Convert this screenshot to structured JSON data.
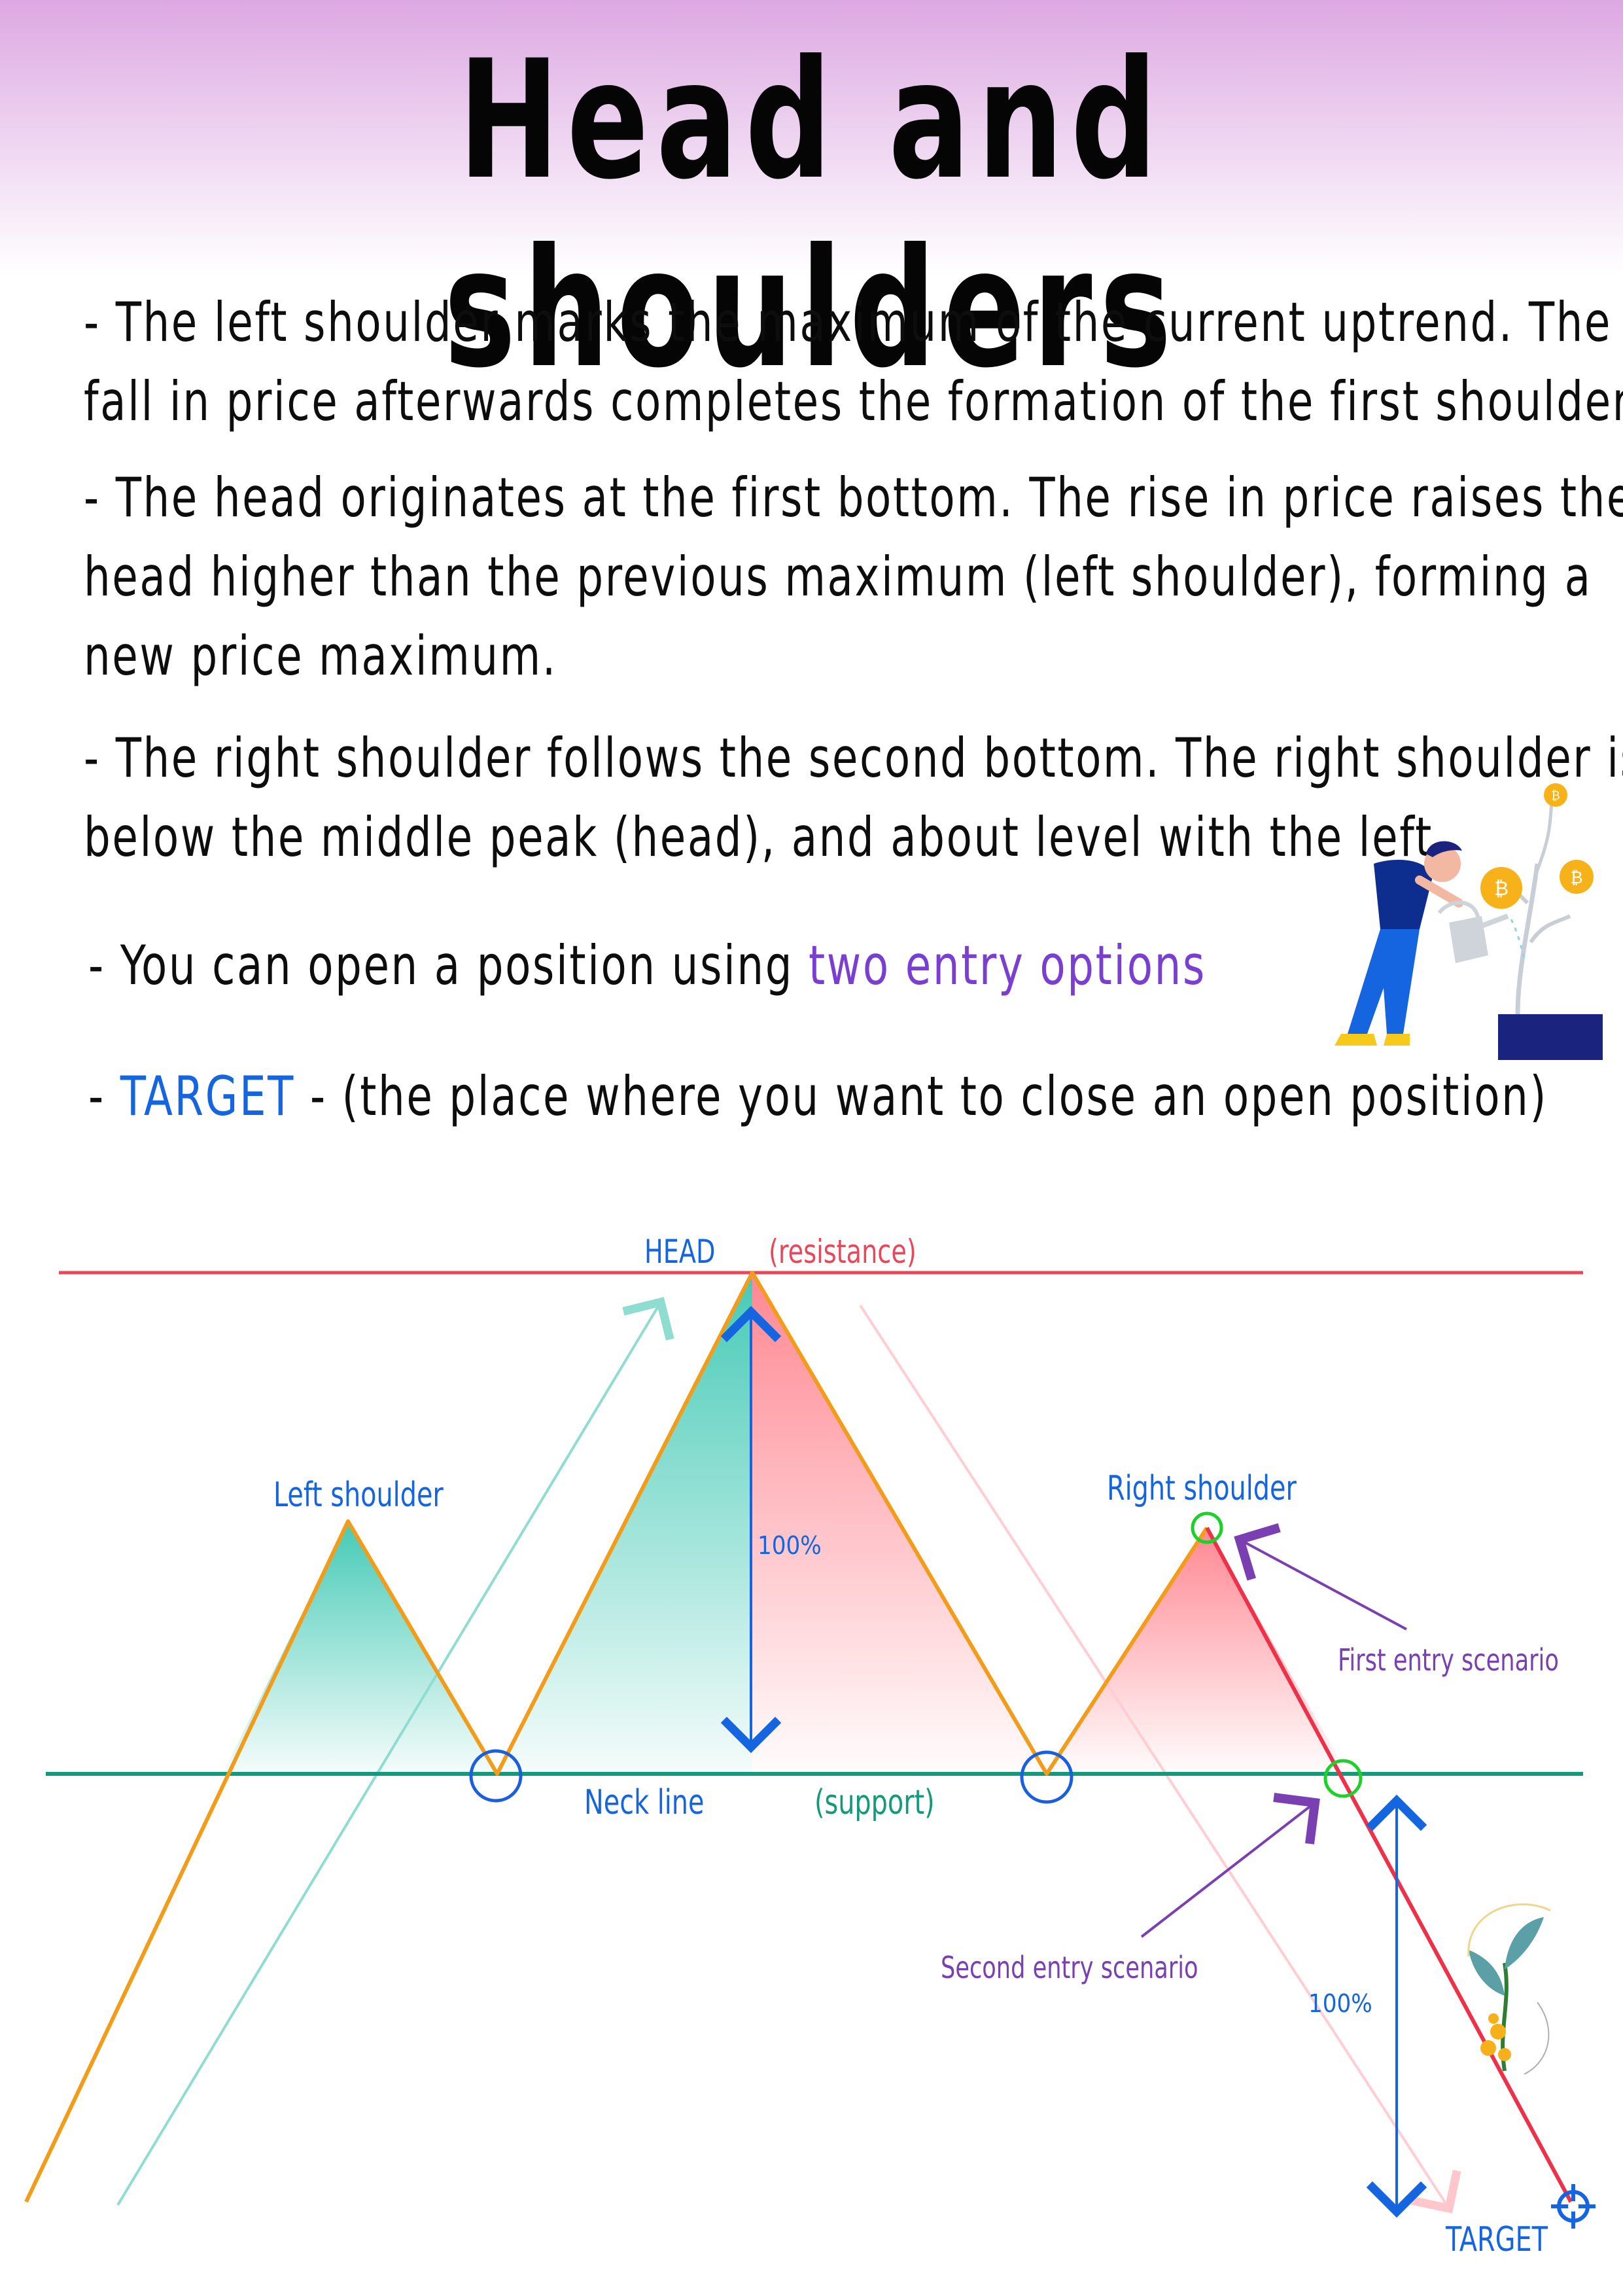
{
  "title": "Head and shoulders",
  "paragraphs": {
    "p1": [
      "- The left shoulder marks the maximum of the current uptrend. The",
      "fall in price afterwards completes the formation of the first shoulder"
    ],
    "p2": [
      "- The head originates at the first bottom. The rise in price raises the",
      "head higher than the previous maximum (left shoulder), forming a",
      "new price maximum."
    ],
    "p3": [
      "- The right shoulder follows the second bottom. The right shoulder is",
      "below the middle peak (head), and about level with the left"
    ],
    "p4": {
      "prefix": "- You can open a position using ",
      "highlight": "two entry options"
    },
    "p5": {
      "prefix": "- ",
      "highlight": "TARGET",
      "suffix": " - (the place where you want to close an open position)"
    }
  },
  "diagram": {
    "labels": {
      "head": "HEAD",
      "resistance": "(resistance)",
      "left_shoulder": "Left shoulder",
      "right_shoulder": "Right shoulder",
      "neck_line": "Neck line",
      "support": "(support)",
      "first_entry": "First entry scenario",
      "second_entry": "Second entry scenario",
      "measure_head": "100%",
      "measure_target": "100%",
      "target": "TARGET"
    },
    "colors": {
      "resistance_line": "#e8485a",
      "neck_line": "#139a7a",
      "price_path": "#f39c1a",
      "breakdown": "#ee3048",
      "label_blue": "#1565e0",
      "label_purple": "#7a3fb0",
      "teal_fill": "#3cc7b2",
      "pink_fill": "#ff7a86",
      "entry_marker": "#1fd02a",
      "bottom_marker": "#1a5fe0"
    },
    "icons": [
      "person-watering-coin-tree-icon",
      "coin-plant-sketch-icon",
      "crosshair-target-icon"
    ]
  }
}
